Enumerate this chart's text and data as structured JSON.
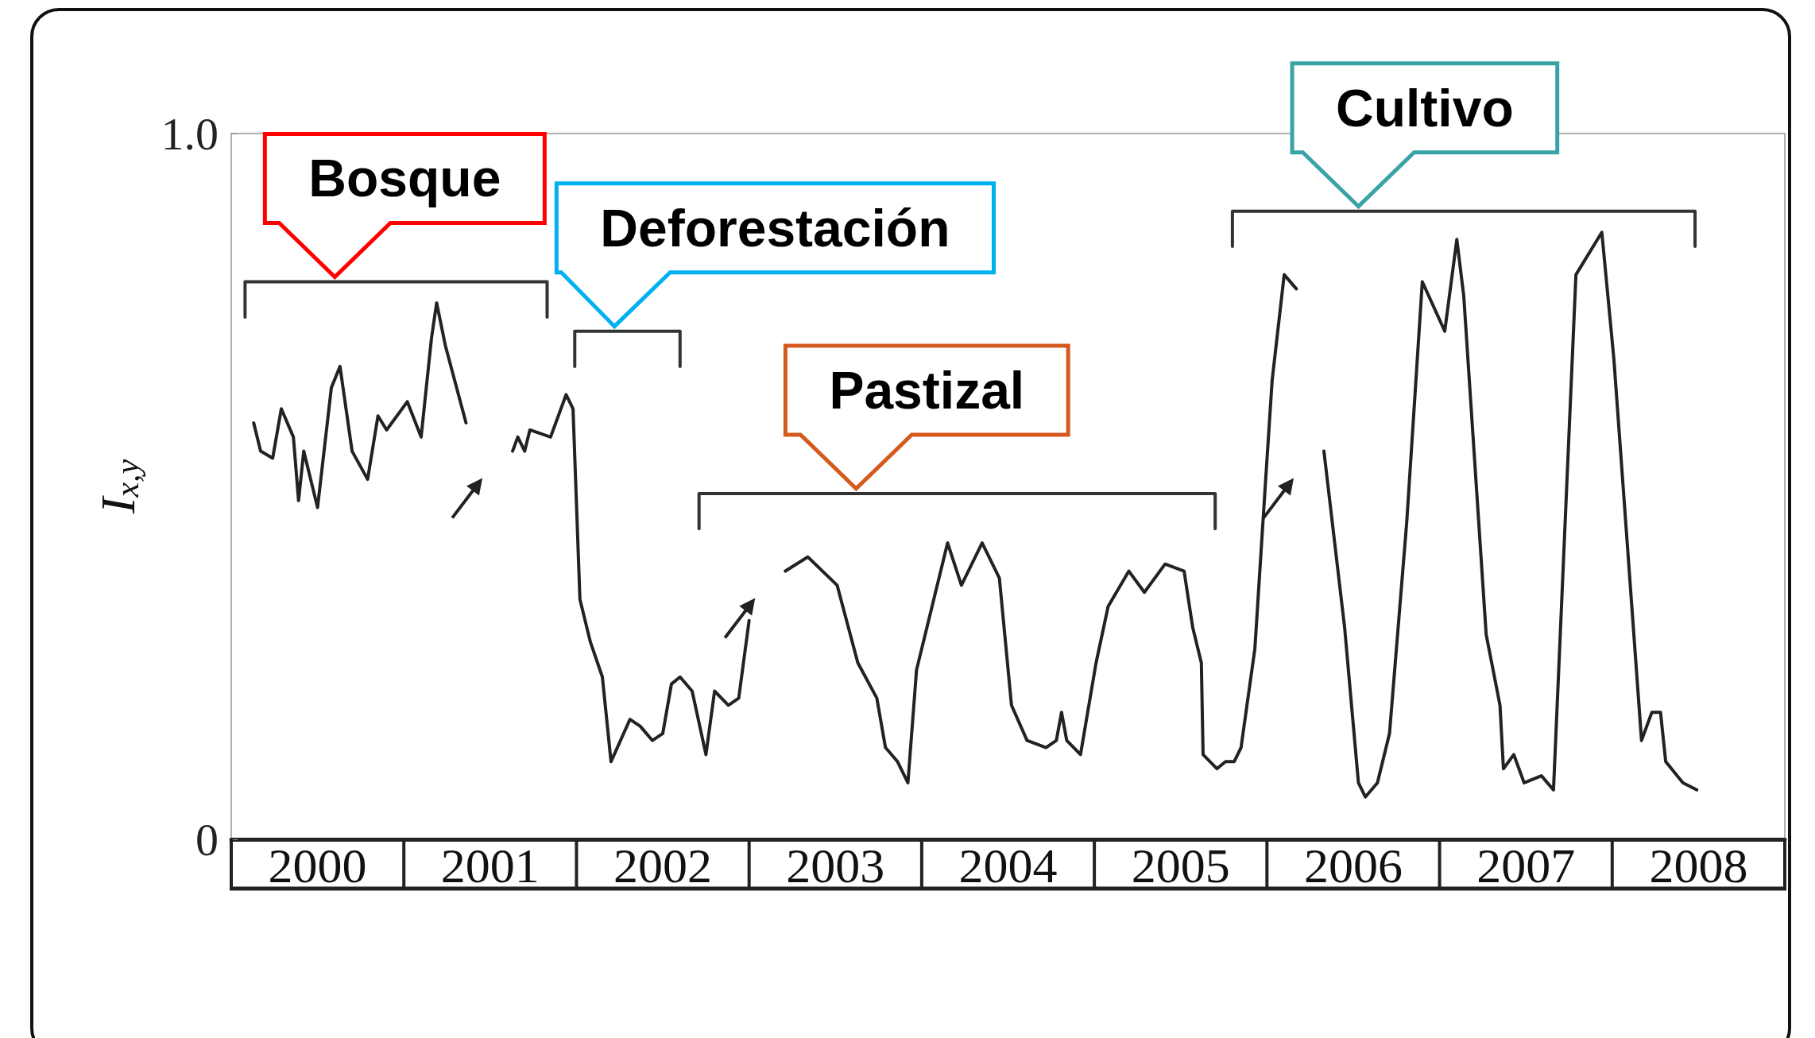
{
  "chart_data": {
    "type": "line",
    "ylabel": "I$_{x,y}$",
    "xlim": [
      2000,
      2009
    ],
    "xticks": [
      {
        "value": 2000.5,
        "label": "2000"
      },
      {
        "value": 2001.5,
        "label": "2001"
      },
      {
        "value": 2002.5,
        "label": "2002"
      },
      {
        "value": 2003.5,
        "label": "2003"
      },
      {
        "value": 2004.5,
        "label": "2004"
      },
      {
        "value": 2005.5,
        "label": "2005"
      },
      {
        "value": 2006.5,
        "label": "2006"
      },
      {
        "value": 2007.5,
        "label": "2007"
      },
      {
        "value": 2008.5,
        "label": "2008"
      }
    ],
    "ylim": [
      0,
      1
    ],
    "yticks": [
      0,
      {
        "value": 1,
        "label": "1.0"
      }
    ],
    "marker": "none",
    "line_style": "solid",
    "series": [
      {
        "color": "#222222",
        "x": [
          2000.13,
          2000.17,
          2000.24,
          2000.29,
          2000.36,
          2000.39,
          2000.42,
          2000.5,
          2000.58,
          2000.63,
          2000.7,
          2000.79,
          2000.85,
          2000.9,
          2001.02,
          2001.1,
          2001.16,
          2001.19,
          2001.24,
          2001.36
        ],
        "values": [
          0.59,
          0.55,
          0.54,
          0.61,
          0.57,
          0.48,
          0.55,
          0.47,
          0.64,
          0.67,
          0.55,
          0.51,
          0.6,
          0.58,
          0.62,
          0.57,
          0.71,
          0.76,
          0.7,
          0.59
        ]
      },
      {
        "color": "#222222",
        "x": [
          2001.63,
          2001.66,
          2001.7,
          2001.73,
          2001.85,
          2001.94,
          2001.98,
          2002.02,
          2002.08,
          2002.15,
          2002.2,
          2002.31,
          2002.37,
          2002.44,
          2002.5,
          2002.55,
          2002.6,
          2002.67,
          2002.75,
          2002.8,
          2002.88,
          2002.94,
          2003.0
        ],
        "values": [
          0.55,
          0.57,
          0.55,
          0.58,
          0.57,
          0.63,
          0.61,
          0.34,
          0.28,
          0.23,
          0.11,
          0.17,
          0.16,
          0.14,
          0.15,
          0.22,
          0.23,
          0.21,
          0.12,
          0.21,
          0.19,
          0.2,
          0.31
        ]
      },
      {
        "color": "#222222",
        "x": [
          2003.21,
          2003.34,
          2003.51,
          2003.63,
          2003.74,
          2003.79,
          2003.86,
          2003.92,
          2003.97,
          2004.07,
          2004.15,
          2004.23,
          2004.35,
          2004.45,
          2004.52,
          2004.61,
          2004.72,
          2004.78,
          2004.81,
          2004.84,
          2004.92,
          2005.01,
          2005.08,
          2005.2,
          2005.29,
          2005.41,
          2005.52,
          2005.57,
          2005.62,
          2005.63,
          2005.71,
          2005.76,
          2005.81,
          2005.85,
          2005.93,
          2005.99,
          2006.03,
          2006.1,
          2006.17
        ],
        "values": [
          0.38,
          0.4,
          0.36,
          0.25,
          0.2,
          0.13,
          0.11,
          0.08,
          0.24,
          0.34,
          0.42,
          0.36,
          0.42,
          0.37,
          0.19,
          0.14,
          0.13,
          0.14,
          0.18,
          0.14,
          0.12,
          0.25,
          0.33,
          0.38,
          0.35,
          0.39,
          0.38,
          0.3,
          0.25,
          0.12,
          0.1,
          0.11,
          0.11,
          0.13,
          0.27,
          0.5,
          0.65,
          0.8,
          0.78
        ]
      },
      {
        "color": "#222222",
        "x": [
          2006.33,
          2006.45,
          2006.53,
          2006.57,
          2006.64,
          2006.71,
          2006.81,
          2006.9,
          2007.03,
          2007.1,
          2007.14,
          2007.27,
          2007.35,
          2007.37,
          2007.43,
          2007.49,
          2007.59,
          2007.66,
          2007.79,
          2007.94,
          2008.01,
          2008.17,
          2008.23,
          2008.28,
          2008.31,
          2008.41,
          2008.49
        ],
        "values": [
          0.55,
          0.3,
          0.08,
          0.06,
          0.08,
          0.15,
          0.45,
          0.79,
          0.72,
          0.85,
          0.77,
          0.29,
          0.19,
          0.1,
          0.12,
          0.08,
          0.09,
          0.07,
          0.8,
          0.86,
          0.68,
          0.14,
          0.18,
          0.18,
          0.11,
          0.08,
          0.07
        ]
      },
      {
        "color": "#333333",
        "x": [
          2000.08,
          2000.08,
          2001.83,
          2001.83
        ],
        "values": [
          0.74,
          0.79,
          0.79,
          0.74
        ]
      },
      {
        "color": "#333333",
        "x": [
          2001.99,
          2001.99,
          2002.6,
          2002.6
        ],
        "values": [
          0.67,
          0.72,
          0.72,
          0.67
        ]
      },
      {
        "color": "#333333",
        "x": [
          2002.71,
          2002.71,
          2005.7,
          2005.7
        ],
        "values": [
          0.44,
          0.49,
          0.49,
          0.44
        ]
      },
      {
        "color": "#333333",
        "x": [
          2005.8,
          2005.8,
          2008.48,
          2008.48
        ],
        "values": [
          0.84,
          0.89,
          0.89,
          0.84
        ]
      }
    ],
    "annotations": [
      {
        "text": "Bosque",
        "x": 2000.6,
        "y": 0.79
      },
      {
        "text": "Deforestación",
        "x": 2002.22,
        "y": 0.72
      },
      {
        "text": "Pastizal",
        "x": 2003.62,
        "y": 0.49
      },
      {
        "text": "Cultivo",
        "x": 2006.53,
        "y": 0.89
      }
    ]
  }
}
